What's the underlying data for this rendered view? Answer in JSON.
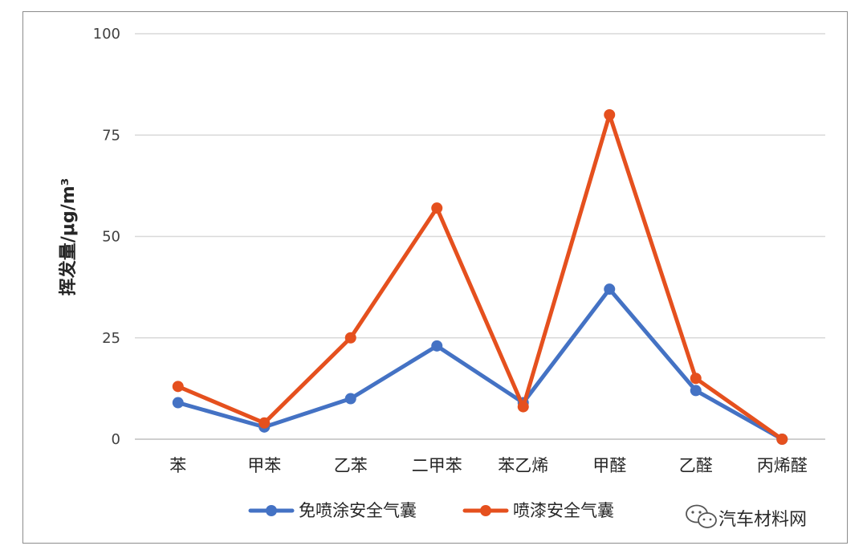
{
  "chart_data": {
    "type": "line",
    "title": "",
    "ylabel": "挥发量/μg/m³",
    "xlabel": "",
    "ylim": [
      0,
      100
    ],
    "yticks": [
      0,
      25,
      50,
      75,
      100
    ],
    "grid": true,
    "legend_position": "bottom",
    "categories": [
      "苯",
      "甲苯",
      "乙苯",
      "二甲苯",
      "苯乙烯",
      "甲醛",
      "乙醛",
      "丙烯醛"
    ],
    "series": [
      {
        "name": "免喷涂安全气囊",
        "color": "#4472C4",
        "values": [
          9,
          3,
          10,
          23,
          9,
          37,
          12,
          0
        ]
      },
      {
        "name": "喷漆安全气囊",
        "color": "#E5501E",
        "values": [
          13,
          4,
          25,
          57,
          8,
          80,
          15,
          0
        ]
      }
    ]
  },
  "watermark": {
    "text": "汽车材料网",
    "icon": "wechat-icon"
  }
}
